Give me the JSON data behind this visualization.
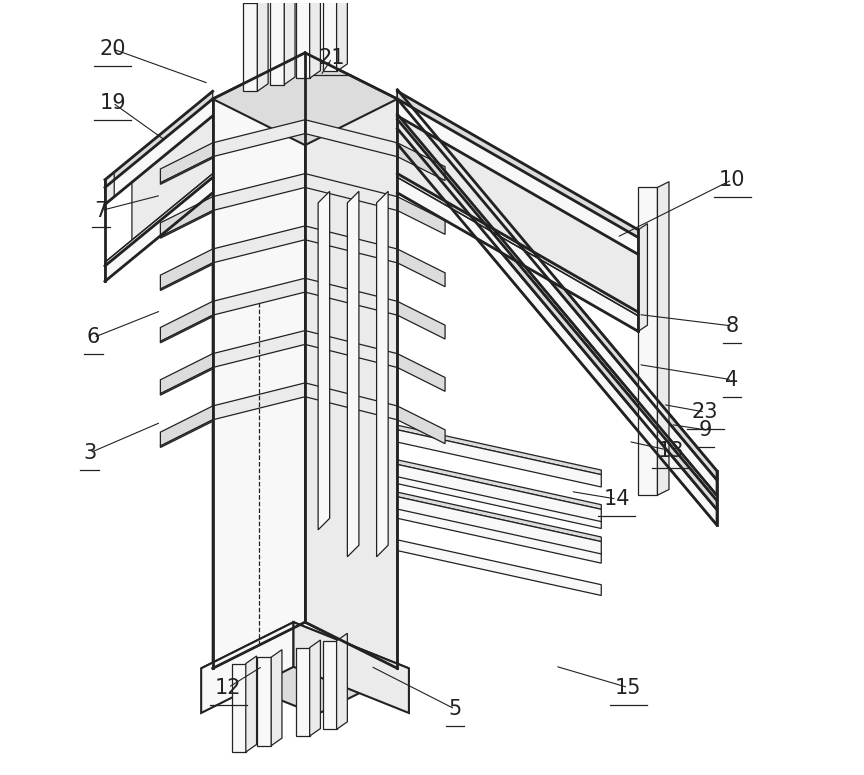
{
  "background_color": "#ffffff",
  "line_color": "#222222",
  "fig_width": 8.64,
  "fig_height": 7.75,
  "dpi": 100,
  "label_fontsize": 15,
  "labels": [
    {
      "t": "20",
      "xt": 0.085,
      "yt": 0.94,
      "xa": 0.21,
      "ya": 0.895
    },
    {
      "t": "19",
      "xt": 0.085,
      "yt": 0.87,
      "xa": 0.155,
      "ya": 0.82
    },
    {
      "t": "21",
      "xt": 0.37,
      "yt": 0.928,
      "xa": 0.355,
      "ya": 0.905
    },
    {
      "t": "10",
      "xt": 0.89,
      "yt": 0.77,
      "xa": 0.74,
      "ya": 0.695
    },
    {
      "t": "7",
      "xt": 0.07,
      "yt": 0.73,
      "xa": 0.148,
      "ya": 0.75
    },
    {
      "t": "8",
      "xt": 0.89,
      "yt": 0.58,
      "xa": 0.768,
      "ya": 0.595
    },
    {
      "t": "6",
      "xt": 0.06,
      "yt": 0.565,
      "xa": 0.148,
      "ya": 0.6
    },
    {
      "t": "4",
      "xt": 0.89,
      "yt": 0.51,
      "xa": 0.768,
      "ya": 0.53
    },
    {
      "t": "23",
      "xt": 0.855,
      "yt": 0.468,
      "xa": 0.8,
      "ya": 0.478
    },
    {
      "t": "3",
      "xt": 0.055,
      "yt": 0.415,
      "xa": 0.148,
      "ya": 0.455
    },
    {
      "t": "9",
      "xt": 0.855,
      "yt": 0.445,
      "xa": 0.81,
      "ya": 0.452
    },
    {
      "t": "13",
      "xt": 0.81,
      "yt": 0.418,
      "xa": 0.755,
      "ya": 0.43
    },
    {
      "t": "14",
      "xt": 0.74,
      "yt": 0.355,
      "xa": 0.68,
      "ya": 0.365
    },
    {
      "t": "12",
      "xt": 0.235,
      "yt": 0.11,
      "xa": 0.28,
      "ya": 0.138
    },
    {
      "t": "5",
      "xt": 0.53,
      "yt": 0.082,
      "xa": 0.42,
      "ya": 0.138
    },
    {
      "t": "15",
      "xt": 0.755,
      "yt": 0.11,
      "xa": 0.66,
      "ya": 0.138
    }
  ]
}
